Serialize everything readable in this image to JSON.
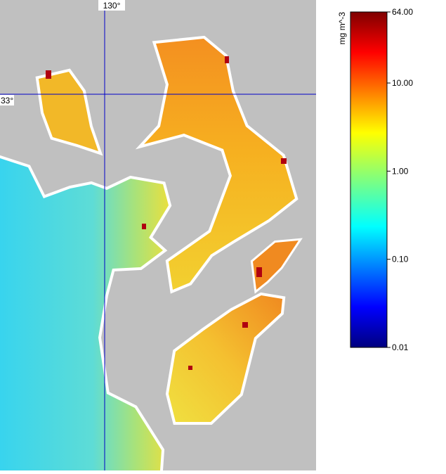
{
  "map": {
    "lon_label": "130°",
    "lat_label": "33°"
  },
  "colorbar": {
    "title": "mg m^-3",
    "scale": "log",
    "lim": [
      0.01,
      64
    ],
    "ticks": [
      {
        "value": 64,
        "label": "64.00"
      },
      {
        "value": 10,
        "label": "10.00"
      },
      {
        "value": 1,
        "label": "1.00"
      },
      {
        "value": 0.1,
        "label": "0.10"
      },
      {
        "value": 0.01,
        "label": "0.01"
      }
    ]
  }
}
